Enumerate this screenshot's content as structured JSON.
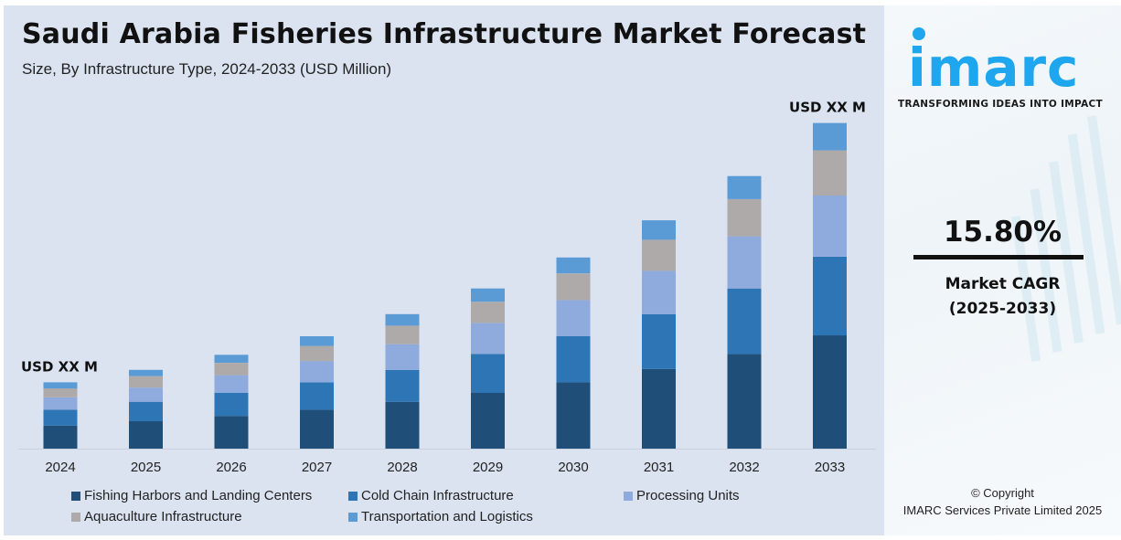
{
  "header": {
    "title": "Saudi Arabia Fisheries Infrastructure Market Forecast",
    "subtitle": "Size, By Infrastructure Type, 2024-2033 (USD Million)"
  },
  "chart_data": {
    "type": "bar",
    "stacked": true,
    "title": "Saudi Arabia Fisheries Infrastructure Market Forecast",
    "subtitle": "Size, By Infrastructure Type, 2024-2033 (USD Million)",
    "xlabel": "",
    "ylabel": "",
    "units": "relative (values not disclosed; labeled USD XX M)",
    "grid": false,
    "legend_position": "bottom",
    "categories": [
      "2024",
      "2025",
      "2026",
      "2027",
      "2028",
      "2029",
      "2030",
      "2031",
      "2032",
      "2033"
    ],
    "series": [
      {
        "name": "Fishing Harbors and Landing Centers",
        "color": "#1f4e79",
        "values": [
          26,
          31,
          37,
          44,
          53,
          63,
          75,
          90,
          107,
          128
        ]
      },
      {
        "name": "Cold Chain Infrastructure",
        "color": "#2e75b6",
        "values": [
          18,
          22,
          26,
          31,
          36,
          44,
          52,
          62,
          74,
          89
        ]
      },
      {
        "name": "Processing Units",
        "color": "#8faadc",
        "values": [
          14,
          16,
          20,
          24,
          29,
          35,
          41,
          49,
          59,
          69
        ]
      },
      {
        "name": "Aquaculture Infrastructure",
        "color": "#aeaaaa",
        "values": [
          10,
          13,
          14,
          17,
          21,
          24,
          30,
          35,
          42,
          51
        ]
      },
      {
        "name": "Transportation and Logistics",
        "color": "#5b9bd5",
        "values": [
          7,
          7,
          9,
          11,
          13,
          15,
          18,
          22,
          26,
          31
        ]
      }
    ],
    "ylim": [
      0,
      380
    ],
    "annotations": [
      {
        "category": "2024",
        "text": "USD XX M"
      },
      {
        "category": "2033",
        "text": "USD XX M"
      }
    ]
  },
  "sidebar": {
    "logo_text": "imarc",
    "tagline": "TRANSFORMING IDEAS INTO IMPACT",
    "cagr_value": "15.80%",
    "cagr_label_line1": "Market CAGR",
    "cagr_label_line2": "(2025-2033)",
    "copyright_line1": "© Copyright",
    "copyright_line2": "IMARC Services Private Limited 2025",
    "brand_color": "#1ea7ee"
  }
}
